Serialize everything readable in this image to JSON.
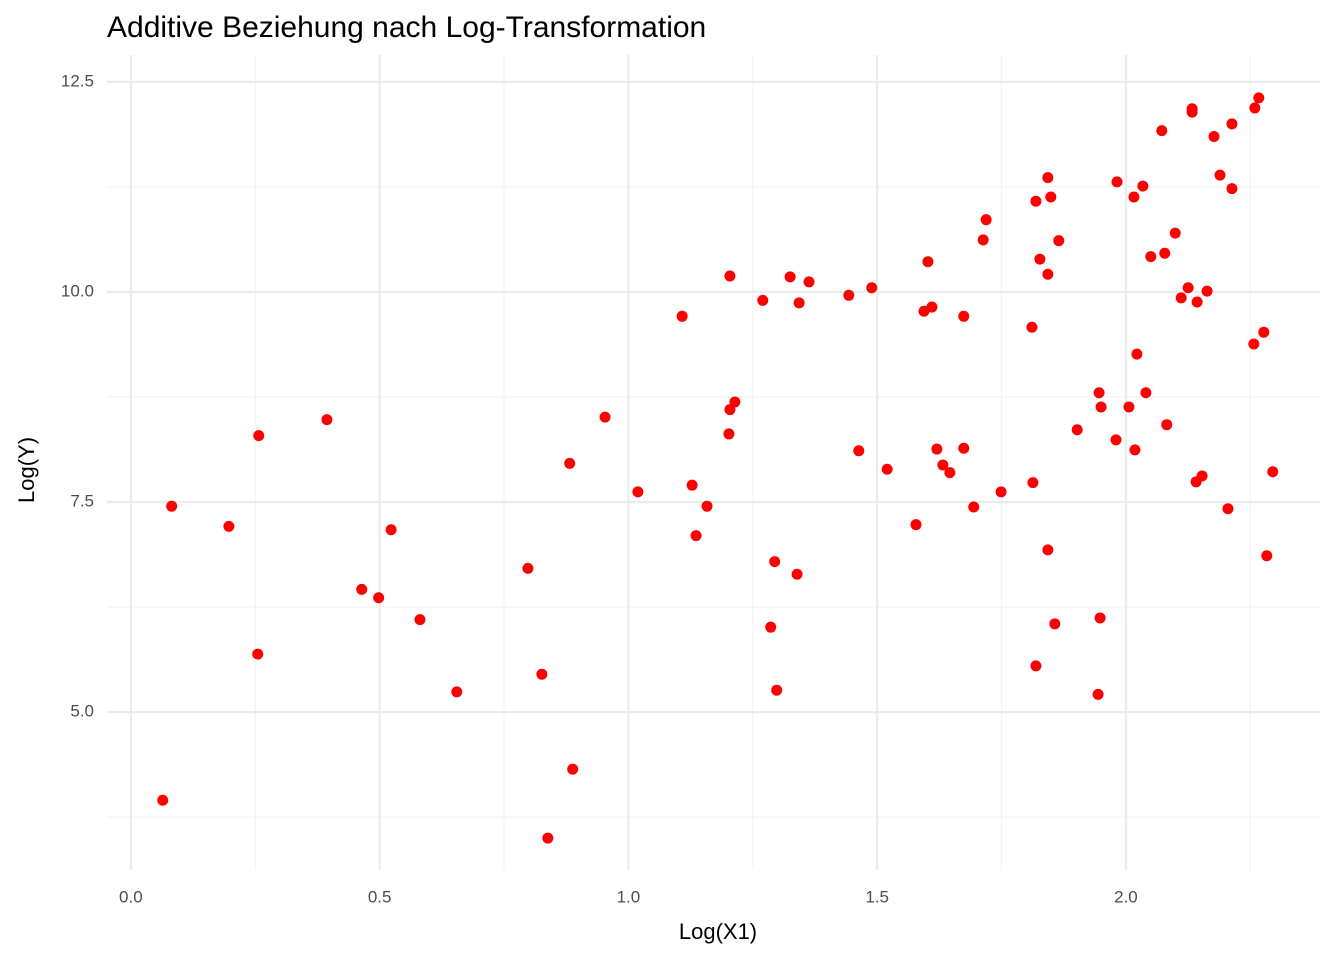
{
  "chart_data": {
    "type": "scatter",
    "title": "Additive Beziehung nach Log-Transformation",
    "x_label": "Log(X1)",
    "y_label": "Log(Y)",
    "color": "#ff0000",
    "grid": true,
    "xlim": [
      -0.048,
      2.39
    ],
    "ylim": [
      3.12,
      12.82
    ],
    "xticks": [
      {
        "value": 0,
        "label": "0.0"
      },
      0.5,
      {
        "value": 1,
        "label": "1.0"
      },
      1.5,
      {
        "value": 2,
        "label": "2.0"
      }
    ],
    "yticks": [
      {
        "value": 5,
        "label": "5.0"
      },
      7.5,
      {
        "value": 10,
        "label": "10.0"
      },
      12.5
    ],
    "x": [
      0.064,
      0.082,
      0.197,
      0.257,
      0.255,
      0.394,
      0.464,
      0.498,
      0.523,
      0.581,
      0.655,
      0.798,
      0.826,
      0.838,
      0.882,
      0.888,
      0.953,
      1.019,
      1.108,
      1.128,
      1.136,
      1.158,
      1.204,
      1.204,
      1.214,
      1.202,
      1.27,
      1.286,
      1.294,
      1.298,
      1.325,
      1.339,
      1.343,
      1.363,
      1.443,
      1.463,
      1.489,
      1.52,
      1.578,
      1.594,
      1.602,
      1.61,
      1.62,
      1.632,
      1.646,
      1.674,
      1.674,
      1.694,
      1.713,
      1.719,
      1.749,
      1.811,
      1.813,
      1.819,
      1.819,
      1.827,
      1.843,
      1.843,
      1.843,
      1.849,
      1.857,
      1.865,
      1.902,
      1.944,
      1.946,
      1.948,
      1.95,
      1.982,
      1.98,
      2.006,
      2.016,
      2.018,
      2.022,
      2.034,
      2.04,
      2.05,
      2.072,
      2.078,
      2.082,
      2.099,
      2.111,
      2.125,
      2.133,
      2.133,
      2.141,
      2.143,
      2.153,
      2.163,
      2.177,
      2.189,
      2.205,
      2.213,
      2.213,
      2.257,
      2.259,
      2.267,
      2.277,
      2.283,
      2.295
    ],
    "y": [
      3.95,
      7.45,
      7.21,
      8.29,
      5.69,
      8.48,
      6.46,
      6.36,
      7.17,
      6.1,
      5.24,
      6.71,
      5.45,
      3.5,
      7.96,
      4.32,
      8.51,
      7.62,
      9.71,
      7.7,
      7.1,
      7.45,
      10.19,
      8.6,
      8.69,
      8.31,
      9.9,
      6.01,
      6.79,
      5.26,
      10.18,
      6.64,
      9.87,
      10.12,
      9.96,
      8.11,
      10.05,
      7.89,
      7.23,
      9.77,
      10.36,
      9.82,
      8.13,
      7.94,
      7.85,
      9.71,
      8.14,
      7.44,
      10.62,
      10.86,
      7.62,
      9.58,
      7.73,
      11.08,
      5.55,
      10.39,
      11.36,
      10.21,
      6.93,
      11.13,
      6.05,
      10.61,
      8.36,
      5.21,
      8.8,
      6.12,
      8.63,
      11.31,
      8.24,
      8.63,
      11.13,
      8.12,
      9.26,
      11.26,
      8.8,
      10.42,
      11.92,
      10.46,
      8.42,
      10.7,
      9.93,
      10.05,
      12.14,
      12.18,
      7.74,
      9.88,
      7.81,
      10.01,
      11.85,
      11.39,
      7.42,
      11.23,
      12.0,
      9.38,
      12.19,
      12.31,
      9.52,
      6.86,
      7.86
    ]
  }
}
